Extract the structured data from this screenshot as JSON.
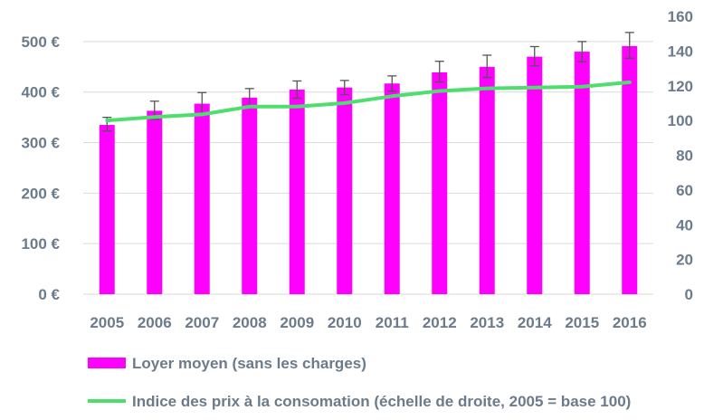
{
  "chart_data": {
    "type": "bar",
    "categories": [
      "2005",
      "2006",
      "2007",
      "2008",
      "2009",
      "2010",
      "2011",
      "2012",
      "2013",
      "2014",
      "2015",
      "2016"
    ],
    "series": [
      {
        "name": "Loyer moyen (sans les charges)",
        "type": "bar",
        "axis": "left",
        "color": "#ff00ff",
        "values": [
          335,
          363,
          377,
          389,
          405,
          409,
          417,
          439,
          450,
          470,
          480,
          491
        ],
        "error_high": [
          350,
          382,
          399,
          407,
          422,
          423,
          432,
          461,
          473,
          490,
          500,
          518
        ],
        "error_low": [
          323,
          346,
          357,
          370,
          388,
          395,
          402,
          420,
          429,
          452,
          460,
          467
        ]
      },
      {
        "name": "Indice des prix à la consomation (échelle de droite, 2005 = base 100)",
        "type": "line",
        "axis": "right",
        "color": "#4ede6e",
        "values": [
          100,
          102,
          103.5,
          108,
          108,
          110,
          114,
          117,
          118.5,
          119,
          119.5,
          122
        ]
      }
    ],
    "y_left": {
      "ylim": [
        0,
        550
      ],
      "ticks": [
        0,
        100,
        200,
        300,
        400,
        500
      ],
      "tick_labels": [
        "0 €",
        "100 €",
        "200 €",
        "300 €",
        "400 €",
        "500 €"
      ]
    },
    "y_right": {
      "ylim": [
        0,
        160
      ],
      "ticks": [
        0,
        20,
        40,
        60,
        80,
        100,
        120,
        140,
        160
      ],
      "tick_labels": [
        "0",
        "20",
        "40",
        "60",
        "80",
        "100",
        "120",
        "140",
        "160"
      ]
    },
    "grid": true,
    "legend_position": "bottom",
    "title": "",
    "xlabel": "",
    "ylabel": ""
  }
}
